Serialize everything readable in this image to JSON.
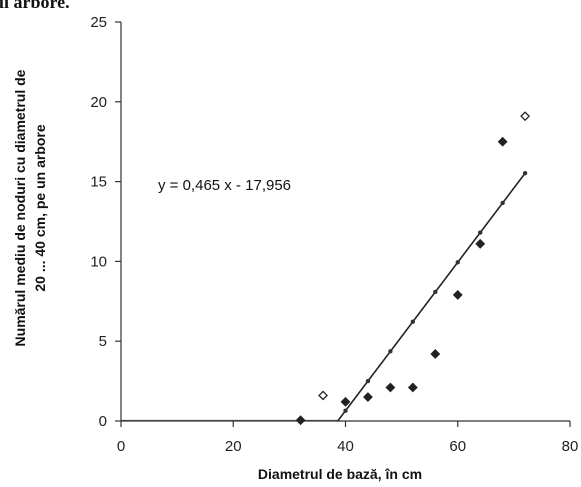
{
  "header": {
    "cut_text": "ui arbore."
  },
  "chart_data": {
    "type": "scatter",
    "xlabel": "Diametrul de bază, în cm",
    "ylabel_lines": [
      "Numărul mediu de noduri cu diametrul de",
      "20 ... 40 cm, pe un arbore"
    ],
    "xlim": [
      0,
      80
    ],
    "ylim": [
      0,
      25
    ],
    "xticks": [
      0,
      20,
      40,
      60,
      80
    ],
    "yticks": [
      0,
      5,
      10,
      15,
      20,
      25
    ],
    "grid": false,
    "series": [
      {
        "marker": "diamond",
        "x": [
          32,
          36,
          40,
          44,
          48,
          52,
          56,
          60,
          64,
          68,
          72
        ],
        "y": [
          0.05,
          1.6,
          1.2,
          1.5,
          2.1,
          2.1,
          4.2,
          7.9,
          11.1,
          17.5,
          19.1
        ]
      }
    ],
    "trendline": {
      "slope": 0.465,
      "intercept": -17.956,
      "x_start": 38.6,
      "x_end": 72,
      "flat_start": 0,
      "flat_end": 38.6,
      "equation_label": "y = 0,465 x - 17,956"
    }
  }
}
